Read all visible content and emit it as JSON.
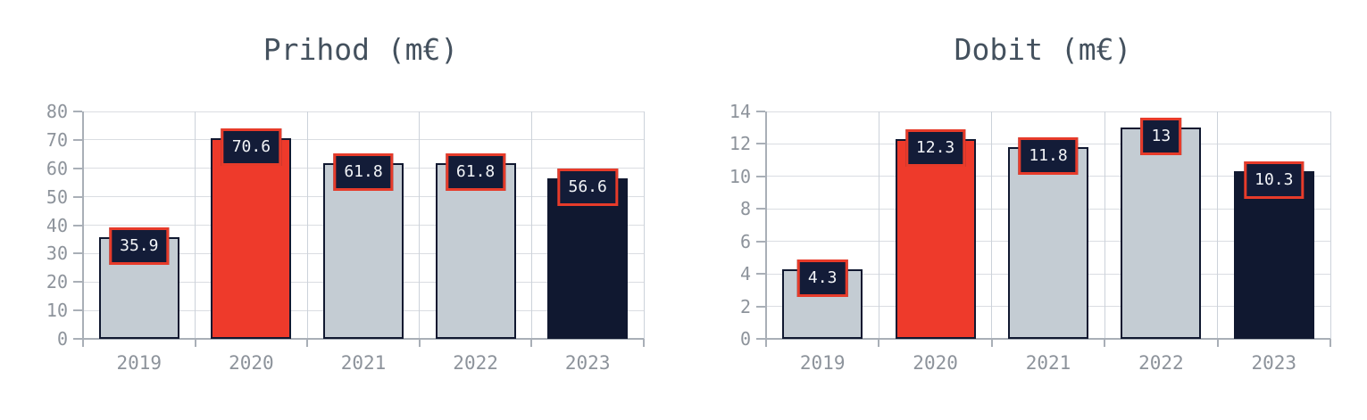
{
  "page": {
    "background": "#ffffff"
  },
  "palette": {
    "red": "#ee3a2b",
    "navy": "#101830",
    "silver": "#c4ccd3",
    "bar_border": "#101830",
    "value_box_bg": "#131c38",
    "value_box_border": "#e73b2a",
    "value_box_text": "#f2f4f7",
    "grid_line": "#dadde2",
    "axis_line": "#a9afb7",
    "tick_text": "#8d939b",
    "title_text": "#44515e"
  },
  "chart_data": [
    {
      "type": "bar",
      "title": "Prihod (m€)",
      "xlabel": "",
      "ylabel": "",
      "categories": [
        "2019",
        "2020",
        "2021",
        "2022",
        "2023"
      ],
      "values": [
        35.9,
        70.6,
        61.8,
        61.8,
        56.6
      ],
      "value_labels": [
        "35.9",
        "70.6",
        "61.8",
        "61.8",
        "56.6"
      ],
      "bar_color_names": [
        "silver",
        "red",
        "silver",
        "silver",
        "navy"
      ],
      "ylim": [
        0,
        80
      ],
      "ytick_step": 10,
      "ytick_labels": [
        "0",
        "10",
        "20",
        "30",
        "40",
        "50",
        "60",
        "70",
        "80"
      ],
      "grid": true,
      "legend": "none"
    },
    {
      "type": "bar",
      "title": "Dobit (m€)",
      "xlabel": "",
      "ylabel": "",
      "categories": [
        "2019",
        "2020",
        "2021",
        "2022",
        "2023"
      ],
      "values": [
        4.3,
        12.3,
        11.8,
        13,
        10.3
      ],
      "value_labels": [
        "4.3",
        "12.3",
        "11.8",
        "13",
        "10.3"
      ],
      "bar_color_names": [
        "silver",
        "red",
        "silver",
        "silver",
        "navy"
      ],
      "ylim": [
        0,
        14
      ],
      "ytick_step": 2,
      "ytick_labels": [
        "0",
        "2",
        "4",
        "6",
        "8",
        "10",
        "12",
        "14"
      ],
      "grid": true,
      "legend": "none"
    }
  ]
}
